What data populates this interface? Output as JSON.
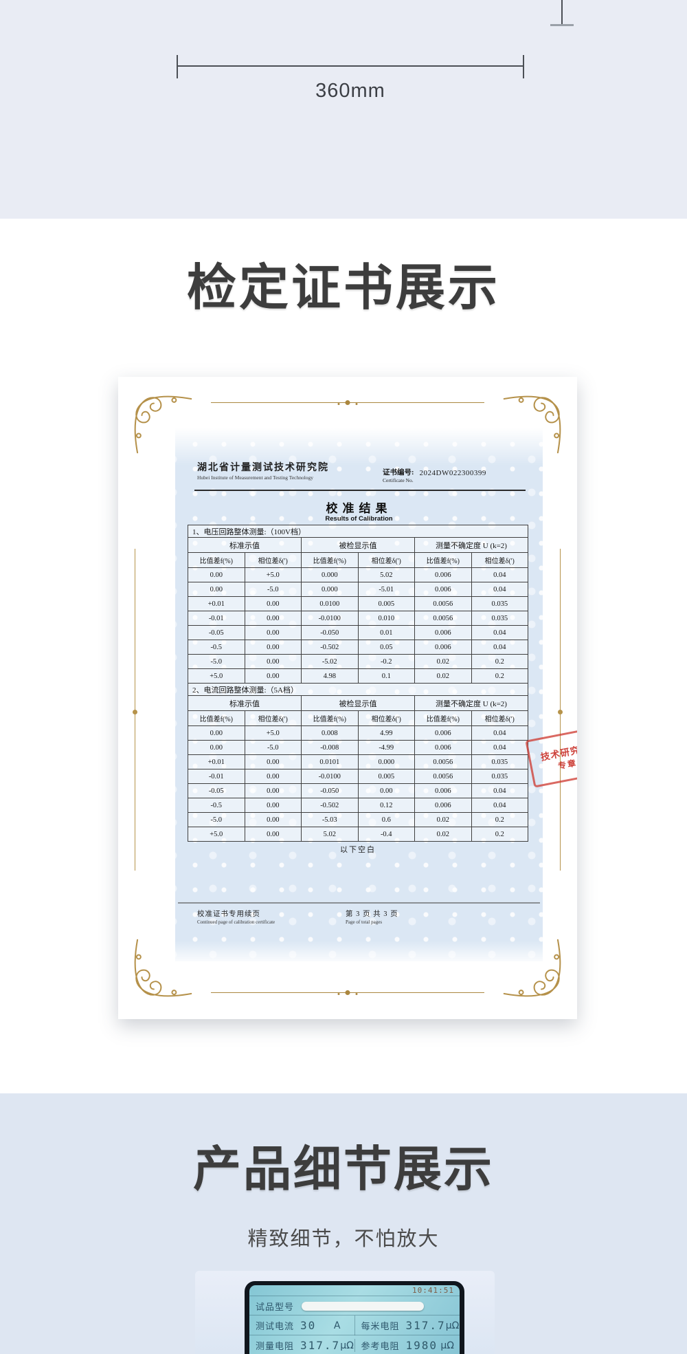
{
  "ruler": {
    "width_label": "360mm"
  },
  "section_cert": {
    "title": "检定证书展示"
  },
  "certificate": {
    "institute_cn": "湖北省计量测试技术研究院",
    "institute_en": "Hubei Institute of Measurement and Testing Technology",
    "cert_no_label_cn": "证书编号:",
    "cert_no_label_en": "Certificate No.",
    "cert_no": "2024DW022300399",
    "result_title_cn": "校准结果",
    "result_title_en": "Results of Calibration",
    "tables": [
      {
        "section_title": "1、电压回路整体测量:（100V档）",
        "group_headers": [
          "标准示值",
          "被检显示值",
          "测量不确定度 U (k=2)"
        ],
        "sub_headers": [
          "比值差f(%)",
          "相位差δ(')",
          "比值差f(%)",
          "相位差δ(')",
          "比值差f(%)",
          "相位差δ(')"
        ],
        "rows": [
          [
            "0.00",
            "+5.0",
            "0.000",
            "5.02",
            "0.006",
            "0.04"
          ],
          [
            "0.00",
            "-5.0",
            "0.000",
            "-5.01",
            "0.006",
            "0.04"
          ],
          [
            "+0.01",
            "0.00",
            "0.0100",
            "0.005",
            "0.0056",
            "0.035"
          ],
          [
            "-0.01",
            "0.00",
            "-0.0100",
            "0.010",
            "0.0056",
            "0.035"
          ],
          [
            "-0.05",
            "0.00",
            "-0.050",
            "0.01",
            "0.006",
            "0.04"
          ],
          [
            "-0.5",
            "0.00",
            "-0.502",
            "0.05",
            "0.006",
            "0.04"
          ],
          [
            "-5.0",
            "0.00",
            "-5.02",
            "-0.2",
            "0.02",
            "0.2"
          ],
          [
            "+5.0",
            "0.00",
            "4.98",
            "0.1",
            "0.02",
            "0.2"
          ]
        ]
      },
      {
        "section_title": "2、电流回路整体测量:（5A档）",
        "group_headers": [
          "标准示值",
          "被检显示值",
          "测量不确定度 U (k=2)"
        ],
        "sub_headers": [
          "比值差f(%)",
          "相位差δ(')",
          "比值差f(%)",
          "相位差δ(')",
          "比值差f(%)",
          "相位差δ(')"
        ],
        "rows": [
          [
            "0.00",
            "+5.0",
            "0.008",
            "4.99",
            "0.006",
            "0.04"
          ],
          [
            "0.00",
            "-5.0",
            "-0.008",
            "-4.99",
            "0.006",
            "0.04"
          ],
          [
            "+0.01",
            "0.00",
            "0.0101",
            "0.000",
            "0.0056",
            "0.035"
          ],
          [
            "-0.01",
            "0.00",
            "-0.0100",
            "0.005",
            "0.0056",
            "0.035"
          ],
          [
            "-0.05",
            "0.00",
            "-0.050",
            "0.00",
            "0.006",
            "0.04"
          ],
          [
            "-0.5",
            "0.00",
            "-0.502",
            "0.12",
            "0.006",
            "0.04"
          ],
          [
            "-5.0",
            "0.00",
            "-5.03",
            "0.6",
            "0.02",
            "0.2"
          ],
          [
            "+5.0",
            "0.00",
            "5.02",
            "-0.4",
            "0.02",
            "0.2"
          ]
        ]
      }
    ],
    "below_blank": "以下空白",
    "stamp": {
      "line1": "技术研究院",
      "line2": "专章"
    },
    "footer": {
      "left_cn": "校准证书专用续页",
      "left_en": "Continued page of calibration certificate",
      "right_cn": "第 3 页 共 3 页",
      "right_en": "Page of  total pages"
    }
  },
  "section_detail": {
    "title": "产品细节展示",
    "subtitle": "精致细节，不怕放大"
  },
  "device_screen": {
    "time": "10:41:51",
    "model_label": "试品型号",
    "rows": [
      {
        "left_label": "测试电流",
        "left_value": "30",
        "left_unit": "A",
        "right_label": "每米电阻",
        "right_value": "317.7",
        "right_unit": "μΩ"
      },
      {
        "left_label": "测量电阻",
        "left_value": "317.7",
        "left_unit": "μΩ",
        "right_label": "参考电阻",
        "right_value": "1980",
        "right_unit": "μΩ"
      }
    ]
  },
  "colors": {
    "gold": "#b5914a",
    "stamp_red": "#cd372d",
    "band_blue": "#dee6f2"
  }
}
